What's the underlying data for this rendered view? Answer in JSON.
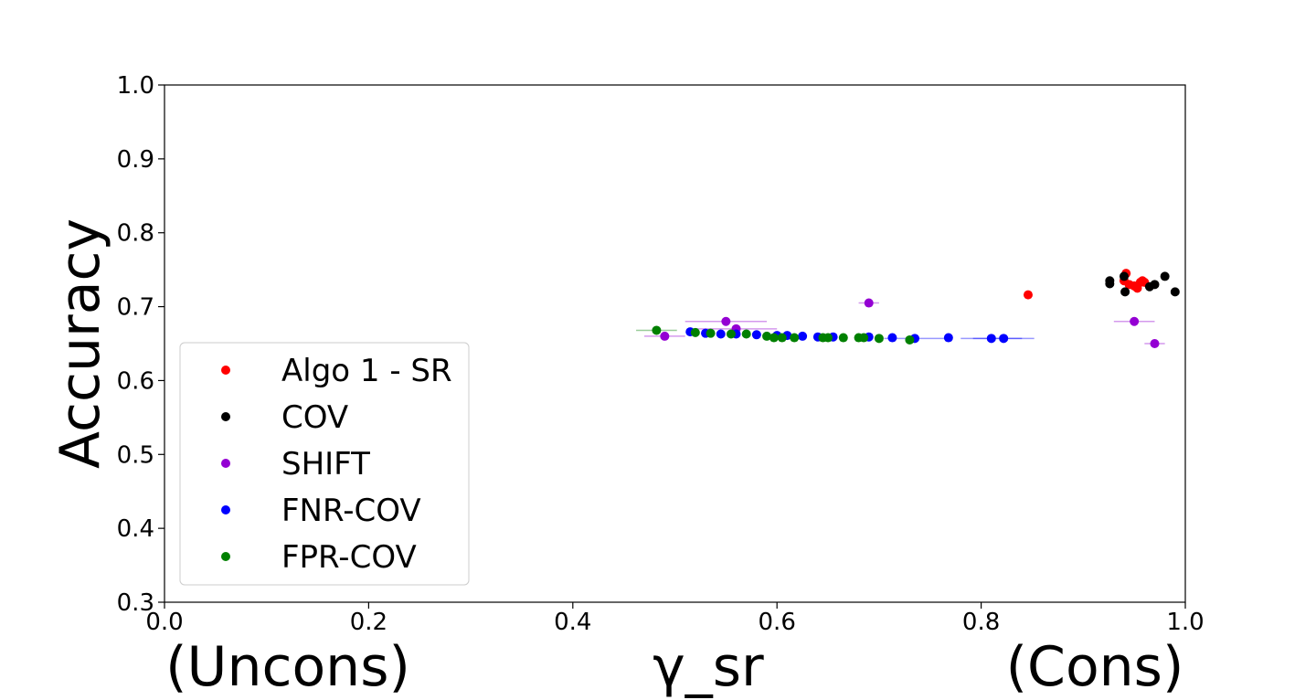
{
  "chart_data": {
    "type": "scatter",
    "title": "",
    "xlabel": "γ_sr",
    "x_annotation_left": "(Uncons)",
    "x_annotation_right": "(Cons)",
    "ylabel": "Accuracy",
    "xlim": [
      0.0,
      1.0
    ],
    "ylim": [
      0.3,
      1.0
    ],
    "x_ticks": [
      "0.0",
      "0.2",
      "0.4",
      "0.6",
      "0.8",
      "1.0"
    ],
    "y_ticks": [
      "0.3",
      "0.4",
      "0.5",
      "0.6",
      "0.7",
      "0.8",
      "0.9",
      "1.0"
    ],
    "grid": false,
    "legend_position": "lower-left",
    "series": [
      {
        "name": "Algo 1 - SR",
        "color": "#ff0000",
        "points": [
          {
            "x": 0.942,
            "y": 0.745
          },
          {
            "x": 0.94,
            "y": 0.735
          },
          {
            "x": 0.945,
            "y": 0.73
          },
          {
            "x": 0.95,
            "y": 0.728
          },
          {
            "x": 0.953,
            "y": 0.725
          },
          {
            "x": 0.956,
            "y": 0.733
          },
          {
            "x": 0.958,
            "y": 0.735
          },
          {
            "x": 0.96,
            "y": 0.733
          },
          {
            "x": 0.846,
            "y": 0.716
          }
        ]
      },
      {
        "name": "COV",
        "color": "#000000",
        "points": [
          {
            "x": 0.926,
            "y": 0.735
          },
          {
            "x": 0.926,
            "y": 0.731
          },
          {
            "x": 0.94,
            "y": 0.741
          },
          {
            "x": 0.941,
            "y": 0.72
          },
          {
            "x": 0.965,
            "y": 0.727
          },
          {
            "x": 0.97,
            "y": 0.73
          },
          {
            "x": 0.98,
            "y": 0.741
          },
          {
            "x": 0.99,
            "y": 0.72
          }
        ]
      },
      {
        "name": "SHIFT",
        "color": "#9400d3",
        "points": [
          {
            "x": 0.49,
            "y": 0.66,
            "xerr": 0.02
          },
          {
            "x": 0.55,
            "y": 0.68,
            "xerr": 0.04
          },
          {
            "x": 0.56,
            "y": 0.67,
            "xerr": 0.04
          },
          {
            "x": 0.69,
            "y": 0.705,
            "xerr": 0.01
          },
          {
            "x": 0.95,
            "y": 0.68,
            "xerr": 0.02
          },
          {
            "x": 0.97,
            "y": 0.65,
            "xerr": 0.01
          }
        ]
      },
      {
        "name": "FNR-COV",
        "color": "#0000ff",
        "points": [
          {
            "x": 0.515,
            "y": 0.666
          },
          {
            "x": 0.53,
            "y": 0.664
          },
          {
            "x": 0.545,
            "y": 0.663
          },
          {
            "x": 0.56,
            "y": 0.663
          },
          {
            "x": 0.58,
            "y": 0.662
          },
          {
            "x": 0.6,
            "y": 0.661
          },
          {
            "x": 0.61,
            "y": 0.661
          },
          {
            "x": 0.625,
            "y": 0.66
          },
          {
            "x": 0.64,
            "y": 0.659
          },
          {
            "x": 0.655,
            "y": 0.659
          },
          {
            "x": 0.69,
            "y": 0.659
          },
          {
            "x": 0.713,
            "y": 0.658
          },
          {
            "x": 0.735,
            "y": 0.657,
            "xerr": 0.03
          },
          {
            "x": 0.768,
            "y": 0.658
          },
          {
            "x": 0.81,
            "y": 0.657,
            "xerr": 0.03
          },
          {
            "x": 0.822,
            "y": 0.657,
            "xerr": 0.03
          }
        ]
      },
      {
        "name": "FPR-COV",
        "color": "#008000",
        "points": [
          {
            "x": 0.482,
            "y": 0.668,
            "xerr": 0.02
          },
          {
            "x": 0.52,
            "y": 0.665
          },
          {
            "x": 0.535,
            "y": 0.664
          },
          {
            "x": 0.555,
            "y": 0.663
          },
          {
            "x": 0.57,
            "y": 0.663
          },
          {
            "x": 0.59,
            "y": 0.66
          },
          {
            "x": 0.597,
            "y": 0.658
          },
          {
            "x": 0.605,
            "y": 0.658
          },
          {
            "x": 0.617,
            "y": 0.658
          },
          {
            "x": 0.645,
            "y": 0.658
          },
          {
            "x": 0.65,
            "y": 0.658
          },
          {
            "x": 0.665,
            "y": 0.658
          },
          {
            "x": 0.68,
            "y": 0.658
          },
          {
            "x": 0.685,
            "y": 0.658
          },
          {
            "x": 0.7,
            "y": 0.657
          },
          {
            "x": 0.73,
            "y": 0.655
          }
        ]
      }
    ]
  }
}
